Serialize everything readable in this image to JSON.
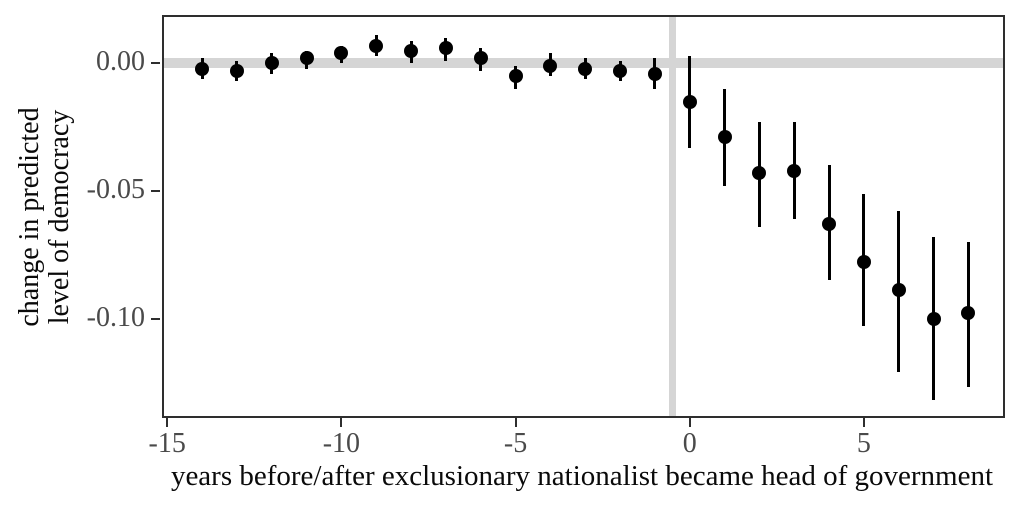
{
  "figure": {
    "background_color": "#ffffff",
    "point_color": "#000000",
    "axis_text_color": "#4a4a4a",
    "axis_title_color": "#0a0a0a",
    "panel_border_color": "#2e2e2e",
    "reference_line_color": "#d5d5d5"
  },
  "chart_data": {
    "type": "scatter",
    "subtype": "point-range (event-study coefficient plot with 95% CIs)",
    "title": "",
    "xlabel": "years before/after exclusionary nationalist became head of government",
    "ylabel": "change in predicted\nlevel of democracy",
    "xlim": [
      -15.15,
      9.05
    ],
    "ylim": [
      -0.139,
      0.019
    ],
    "grid": "off",
    "legend": "none",
    "x_ticks": [
      {
        "value": -15,
        "label": "-15"
      },
      {
        "value": -10,
        "label": "-10"
      },
      {
        "value": -5,
        "label": "-5"
      },
      {
        "value": 0,
        "label": "0"
      },
      {
        "value": 5,
        "label": "5"
      }
    ],
    "y_ticks": [
      {
        "value": 0.0,
        "label": "0.00"
      },
      {
        "value": -0.05,
        "label": "-0.05"
      },
      {
        "value": -0.1,
        "label": "-0.10"
      }
    ],
    "reference_lines": {
      "horizontal_y": 0,
      "vertical_x": -0.5,
      "color": "#d5d5d5"
    },
    "series": [
      {
        "name": "estimate with 95% CI",
        "points": [
          {
            "x": -14,
            "estimate": -0.002,
            "ci_low": -0.006,
            "ci_high": 0.002
          },
          {
            "x": -13,
            "estimate": -0.003,
            "ci_low": -0.007,
            "ci_high": 0.001
          },
          {
            "x": -12,
            "estimate": 0.0,
            "ci_low": -0.004,
            "ci_high": 0.004
          },
          {
            "x": -11,
            "estimate": 0.002,
            "ci_low": -0.002,
            "ci_high": 0.005
          },
          {
            "x": -10,
            "estimate": 0.004,
            "ci_low": 0.0,
            "ci_high": 0.007
          },
          {
            "x": -9,
            "estimate": 0.007,
            "ci_low": 0.003,
            "ci_high": 0.011
          },
          {
            "x": -8,
            "estimate": 0.005,
            "ci_low": 0.0,
            "ci_high": 0.009
          },
          {
            "x": -7,
            "estimate": 0.006,
            "ci_low": 0.001,
            "ci_high": 0.01
          },
          {
            "x": -6,
            "estimate": 0.002,
            "ci_low": -0.003,
            "ci_high": 0.006
          },
          {
            "x": -5,
            "estimate": -0.005,
            "ci_low": -0.01,
            "ci_high": -0.001
          },
          {
            "x": -4,
            "estimate": -0.001,
            "ci_low": -0.005,
            "ci_high": 0.004
          },
          {
            "x": -3,
            "estimate": -0.002,
            "ci_low": -0.006,
            "ci_high": 0.002
          },
          {
            "x": -2,
            "estimate": -0.003,
            "ci_low": -0.007,
            "ci_high": 0.001
          },
          {
            "x": -1,
            "estimate": -0.004,
            "ci_low": -0.01,
            "ci_high": 0.002
          },
          {
            "x": 0,
            "estimate": -0.015,
            "ci_low": -0.033,
            "ci_high": 0.003
          },
          {
            "x": 1,
            "estimate": -0.029,
            "ci_low": -0.048,
            "ci_high": -0.01
          },
          {
            "x": 2,
            "estimate": -0.043,
            "ci_low": -0.064,
            "ci_high": -0.023
          },
          {
            "x": 3,
            "estimate": -0.042,
            "ci_low": -0.061,
            "ci_high": -0.023
          },
          {
            "x": 4,
            "estimate": -0.063,
            "ci_low": -0.085,
            "ci_high": -0.04
          },
          {
            "x": 5,
            "estimate": -0.078,
            "ci_low": -0.103,
            "ci_high": -0.051
          },
          {
            "x": 6,
            "estimate": -0.089,
            "ci_low": -0.121,
            "ci_high": -0.058
          },
          {
            "x": 7,
            "estimate": -0.1,
            "ci_low": -0.132,
            "ci_high": -0.068
          },
          {
            "x": 8,
            "estimate": -0.098,
            "ci_low": -0.127,
            "ci_high": -0.07
          }
        ]
      }
    ]
  }
}
